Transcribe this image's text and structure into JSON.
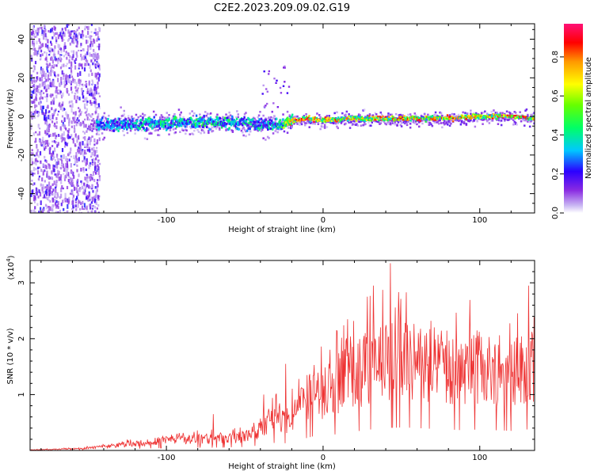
{
  "title": "C2E2.2023.209.09.02.G19",
  "chart_data": [
    {
      "type": "heatmap",
      "xlabel": "Height of straight line (km)",
      "ylabel": "Frequency (Hz)",
      "xlim": [
        -187,
        135
      ],
      "ylim": [
        -50,
        48
      ],
      "xticks": [
        -100,
        0,
        100
      ],
      "yticks": [
        -40,
        -20,
        0,
        20,
        40
      ],
      "signal_track": {
        "x": [
          -140,
          -120,
          -100,
          -80,
          -60,
          -40,
          -30,
          -20,
          -10,
          0,
          20,
          40,
          60,
          80,
          100,
          120,
          135
        ],
        "frequency": [
          -4,
          -4,
          -3,
          -3,
          -3,
          -4,
          -4,
          -2,
          -1,
          -2,
          -1,
          -1,
          -1,
          -1,
          0,
          0,
          -1
        ],
        "peak_amplitude": [
          0.35,
          0.4,
          0.45,
          0.45,
          0.45,
          0.4,
          0.4,
          0.85,
          0.9,
          0.8,
          0.8,
          0.85,
          0.85,
          0.8,
          0.85,
          0.9,
          0.75
        ]
      },
      "noise_region_x": [
        -187,
        -143
      ],
      "colorbar": {
        "label": "Normalized spectral amplitude",
        "range": [
          0,
          0.97
        ],
        "ticks": [
          0.0,
          0.2,
          0.4,
          0.6,
          0.8
        ],
        "tick_labels": [
          "0.0",
          "0.2",
          "0.4",
          "0.6",
          "0.8"
        ]
      }
    },
    {
      "type": "line",
      "xlabel": "Height of straight line (km)",
      "ylabel": "SNR (10 * v/v)",
      "yscale_label": "(x10",
      "yscale_exp": "4",
      "yscale_close": ")",
      "xlim": [
        -187,
        135
      ],
      "ylim": [
        0,
        3.4
      ],
      "xticks": [
        -100,
        0,
        100
      ],
      "yticks": [
        1,
        2,
        3
      ],
      "color": "#ee3333",
      "x": [
        -187,
        -170,
        -150,
        -140,
        -120,
        -100,
        -80,
        -70,
        -60,
        -50,
        -45,
        -40,
        -35,
        -30,
        -25,
        -20,
        -15,
        -10,
        -5,
        0,
        5,
        10,
        20,
        30,
        40,
        50,
        60,
        70,
        80,
        90,
        100,
        110,
        120,
        130,
        135
      ],
      "mean": [
        0.01,
        0.02,
        0.04,
        0.07,
        0.12,
        0.18,
        0.2,
        0.2,
        0.22,
        0.25,
        0.3,
        0.4,
        0.5,
        0.55,
        0.5,
        0.6,
        0.75,
        0.9,
        1.05,
        1.0,
        1.1,
        1.2,
        1.35,
        1.5,
        1.6,
        1.65,
        1.6,
        1.55,
        1.5,
        1.45,
        1.5,
        1.45,
        1.4,
        1.5,
        1.45
      ],
      "peaks": [
        {
          "x": -70,
          "y": 0.65
        },
        {
          "x": -38,
          "y": 1.0
        },
        {
          "x": -24,
          "y": 1.55
        },
        {
          "x": 32,
          "y": 2.95
        },
        {
          "x": 43,
          "y": 3.35
        },
        {
          "x": 66,
          "y": 2.1
        },
        {
          "x": 99,
          "y": 2.05
        },
        {
          "x": 131,
          "y": 2.95
        }
      ]
    }
  ]
}
